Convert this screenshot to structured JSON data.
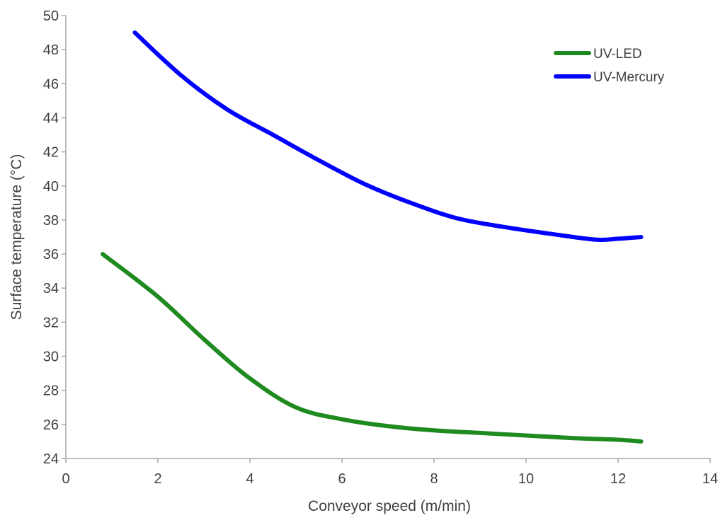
{
  "chart_data": {
    "type": "line",
    "xlabel": "Conveyor  speed (m/min)",
    "ylabel": "Surface temperature (°C)",
    "xlim": [
      0,
      14
    ],
    "ylim": [
      24,
      50
    ],
    "x_ticks": [
      0,
      2,
      4,
      6,
      8,
      10,
      12,
      14
    ],
    "y_ticks": [
      24,
      26,
      28,
      30,
      32,
      34,
      36,
      38,
      40,
      42,
      44,
      46,
      48,
      50
    ],
    "grid": false,
    "legend_position": "top-right",
    "series": [
      {
        "name": "UV-LED",
        "color": "#1f8a1f",
        "x": [
          0.8,
          2.0,
          3.0,
          4.0,
          5.0,
          6.0,
          7.0,
          8.0,
          9.0,
          10.0,
          11.0,
          12.0,
          12.5
        ],
        "y": [
          36.0,
          33.5,
          31.0,
          28.7,
          27.0,
          26.3,
          25.9,
          25.65,
          25.5,
          25.35,
          25.2,
          25.1,
          25.0
        ]
      },
      {
        "name": "UV-Mercury",
        "color": "#0000ff",
        "x": [
          1.5,
          2.5,
          3.5,
          4.5,
          5.5,
          6.5,
          7.5,
          8.5,
          9.5,
          10.5,
          11.5,
          12.0,
          12.5
        ],
        "y": [
          49.0,
          46.5,
          44.5,
          43.0,
          41.5,
          40.1,
          39.0,
          38.1,
          37.6,
          37.2,
          36.85,
          36.9,
          37.0
        ]
      }
    ]
  }
}
